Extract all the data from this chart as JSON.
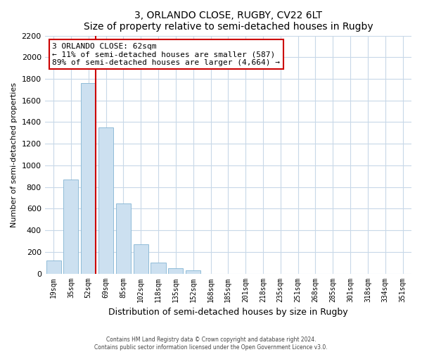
{
  "title": "3, ORLANDO CLOSE, RUGBY, CV22 6LT",
  "subtitle": "Size of property relative to semi-detached houses in Rugby",
  "xlabel": "Distribution of semi-detached houses by size in Rugby",
  "ylabel": "Number of semi-detached properties",
  "bar_labels": [
    "19sqm",
    "35sqm",
    "52sqm",
    "69sqm",
    "85sqm",
    "102sqm",
    "118sqm",
    "135sqm",
    "152sqm",
    "168sqm",
    "185sqm",
    "201sqm",
    "218sqm",
    "235sqm",
    "251sqm",
    "268sqm",
    "285sqm",
    "301sqm",
    "318sqm",
    "334sqm",
    "351sqm"
  ],
  "bar_values": [
    120,
    870,
    1760,
    1350,
    645,
    270,
    100,
    50,
    30,
    0,
    0,
    0,
    0,
    0,
    0,
    0,
    0,
    0,
    0,
    0,
    0
  ],
  "bar_color": "#cce0f0",
  "bar_edge_color": "#90bcd8",
  "annotation_title": "3 ORLANDO CLOSE: 62sqm",
  "annotation_line1": "← 11% of semi-detached houses are smaller (587)",
  "annotation_line2": "89% of semi-detached houses are larger (4,664) →",
  "annotation_box_color": "#ffffff",
  "annotation_box_edge": "#cc0000",
  "vline_color": "#cc0000",
  "vline_x": 2.42,
  "ylim": [
    0,
    2200
  ],
  "yticks": [
    0,
    200,
    400,
    600,
    800,
    1000,
    1200,
    1400,
    1600,
    1800,
    2000,
    2200
  ],
  "footer_line1": "Contains HM Land Registry data © Crown copyright and database right 2024.",
  "footer_line2": "Contains public sector information licensed under the Open Government Licence v3.0.",
  "bg_color": "#ffffff",
  "grid_color": "#c8d8e8"
}
